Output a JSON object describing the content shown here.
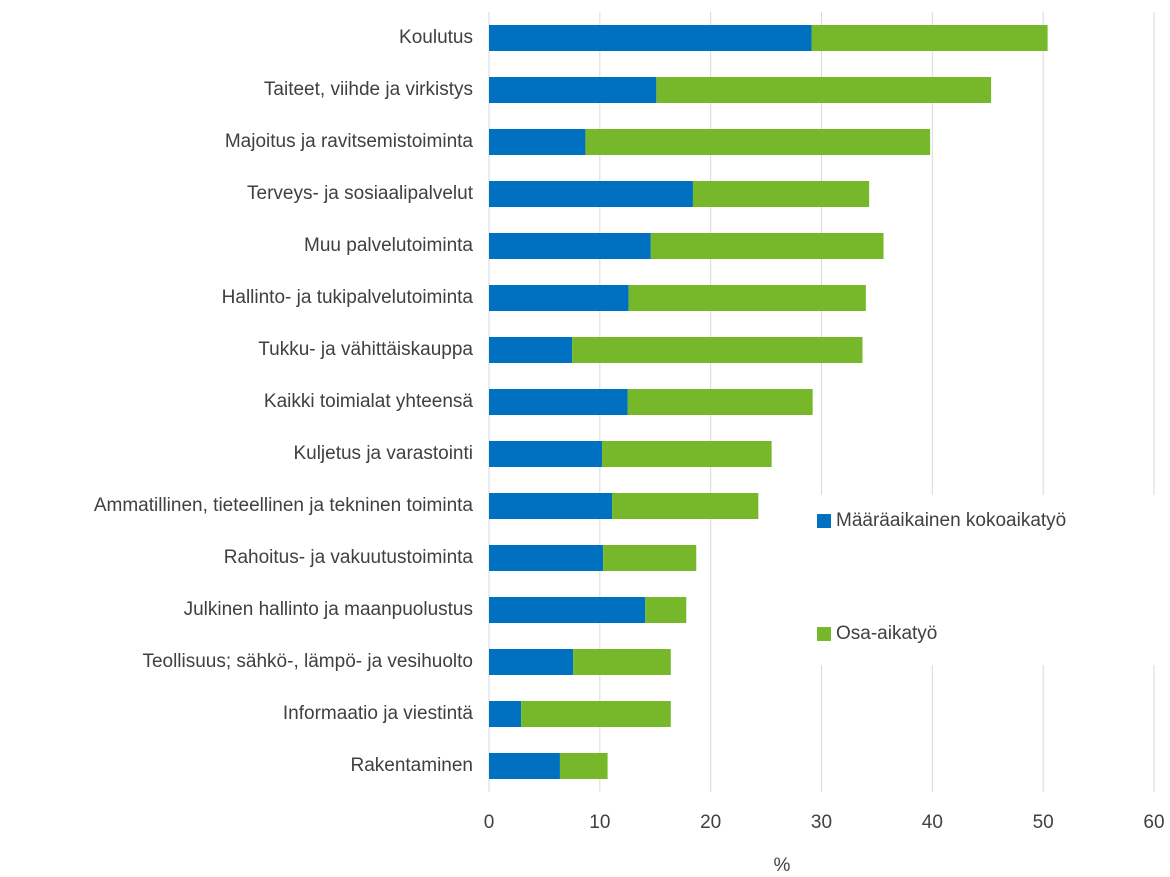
{
  "chart_data": {
    "type": "stacked_bar_horizontal",
    "categories": [
      "Koulutus",
      "Taiteet, viihde ja virkistys",
      "Majoitus ja ravitsemistoiminta",
      "Terveys- ja sosiaalipalvelut",
      "Muu palvelutoiminta",
      "Hallinto- ja tukipalvelutoiminta",
      "Tukku- ja vähittäiskauppa",
      "Kaikki toimialat yhteensä",
      "Kuljetus ja varastointi",
      "Ammatillinen, tieteellinen ja tekninen toiminta",
      "Rahoitus- ja vakuutustoiminta",
      "Julkinen hallinto ja maanpuolustus",
      "Teollisuus; sähkö-, lämpö- ja vesihuolto",
      "Informaatio ja viestintä",
      "Rakentaminen"
    ],
    "series": [
      {
        "name": "Määräaikainen kokoaikatyö",
        "color": "#0070c0",
        "values": [
          29.1,
          15.1,
          8.7,
          18.4,
          14.6,
          12.6,
          7.5,
          12.5,
          10.2,
          11.1,
          10.3,
          14.1,
          7.6,
          2.9,
          6.4
        ]
      },
      {
        "name": "Osa-aikatyö",
        "color": "#76b82a",
        "values": [
          21.3,
          30.2,
          31.1,
          15.9,
          21.0,
          21.4,
          26.2,
          16.7,
          15.3,
          13.2,
          8.4,
          3.7,
          8.8,
          13.5,
          4.3
        ]
      }
    ],
    "xlabel": "%",
    "xlim": [
      0,
      60
    ],
    "xticks": [
      0,
      10,
      20,
      30,
      40,
      50,
      60
    ],
    "grid": true,
    "legend": "right"
  }
}
